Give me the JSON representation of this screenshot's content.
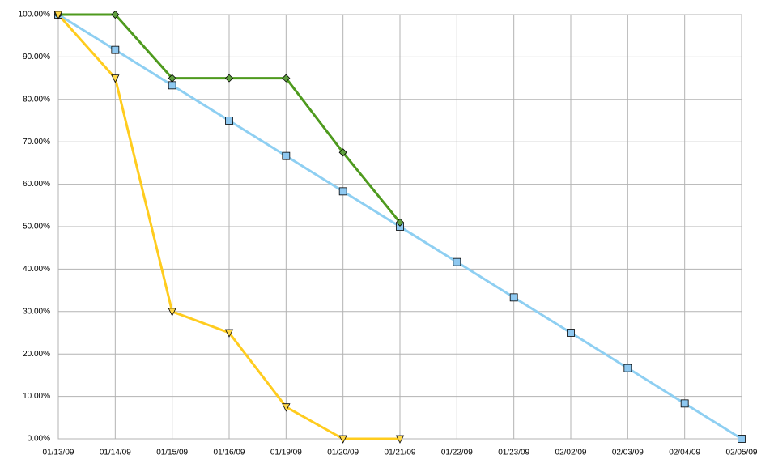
{
  "chart_data": {
    "type": "line",
    "categories": [
      "01/13/09",
      "01/14/09",
      "01/15/09",
      "01/16/09",
      "01/19/09",
      "01/20/09",
      "01/21/09",
      "01/22/09",
      "01/23/09",
      "02/02/09",
      "02/03/09",
      "02/04/09",
      "02/05/09"
    ],
    "series": [
      {
        "color": "#8ecff2",
        "marker": "square",
        "marker_color": "#8ec8f0",
        "values": [
          100,
          91.67,
          83.33,
          75,
          66.67,
          58.33,
          50,
          41.67,
          33.33,
          25,
          16.67,
          8.33,
          0
        ]
      },
      {
        "color": "#4e9a1e",
        "marker": "diamond",
        "marker_color": "#5e9e3e",
        "values": [
          100,
          100,
          85,
          85,
          85,
          67.5,
          51,
          null,
          null,
          null,
          null,
          null,
          null
        ]
      },
      {
        "color": "#ffcc1e",
        "marker": "triangle-down",
        "marker_color": "#ffd84a",
        "values": [
          100,
          85,
          30,
          25,
          7.5,
          0,
          0,
          null,
          null,
          null,
          null,
          null,
          null
        ]
      }
    ],
    "ylim": [
      0,
      100
    ],
    "yticks": [
      {
        "value": 0,
        "label": "0.00%"
      },
      {
        "value": 10,
        "label": "10.00%"
      },
      {
        "value": 20,
        "label": "20.00%"
      },
      {
        "value": 30,
        "label": "30.00%"
      },
      {
        "value": 40,
        "label": "40.00%"
      },
      {
        "value": 50,
        "label": "50.00%"
      },
      {
        "value": 60,
        "label": "60.00%"
      },
      {
        "value": 70,
        "label": "70.00%"
      },
      {
        "value": 80,
        "label": "80.00%"
      },
      {
        "value": 90,
        "label": "90.00%"
      },
      {
        "value": 100,
        "label": "100.00%"
      }
    ],
    "grid": true
  }
}
